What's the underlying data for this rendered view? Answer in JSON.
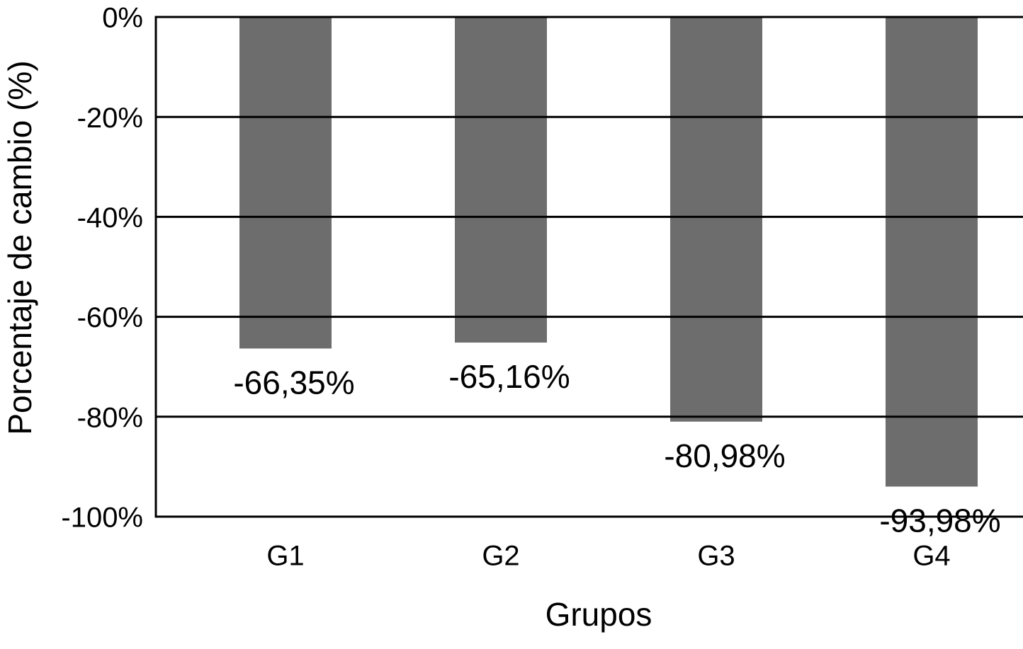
{
  "chart_data": {
    "type": "bar",
    "categories": [
      "G1",
      "G2",
      "G3",
      "G4"
    ],
    "values": [
      -66.35,
      -65.16,
      -80.98,
      -93.98
    ],
    "value_labels": [
      "-66,35%",
      "-65,16%",
      "-80,98%",
      "-93,98%"
    ],
    "color": "#6d6d6d",
    "x_label": "Grupos",
    "y_label": "Porcentaje de cambio (%)",
    "ylim": [
      -100,
      0
    ],
    "yticks": [
      {
        "value": 0,
        "label": "0%"
      },
      {
        "value": -20,
        "label": "-20%"
      },
      {
        "value": -40,
        "label": "-40%"
      },
      {
        "value": -60,
        "label": "-60%"
      },
      {
        "value": -80,
        "label": "-80%"
      },
      {
        "value": -100,
        "label": "-100%"
      }
    ],
    "grid": true
  }
}
